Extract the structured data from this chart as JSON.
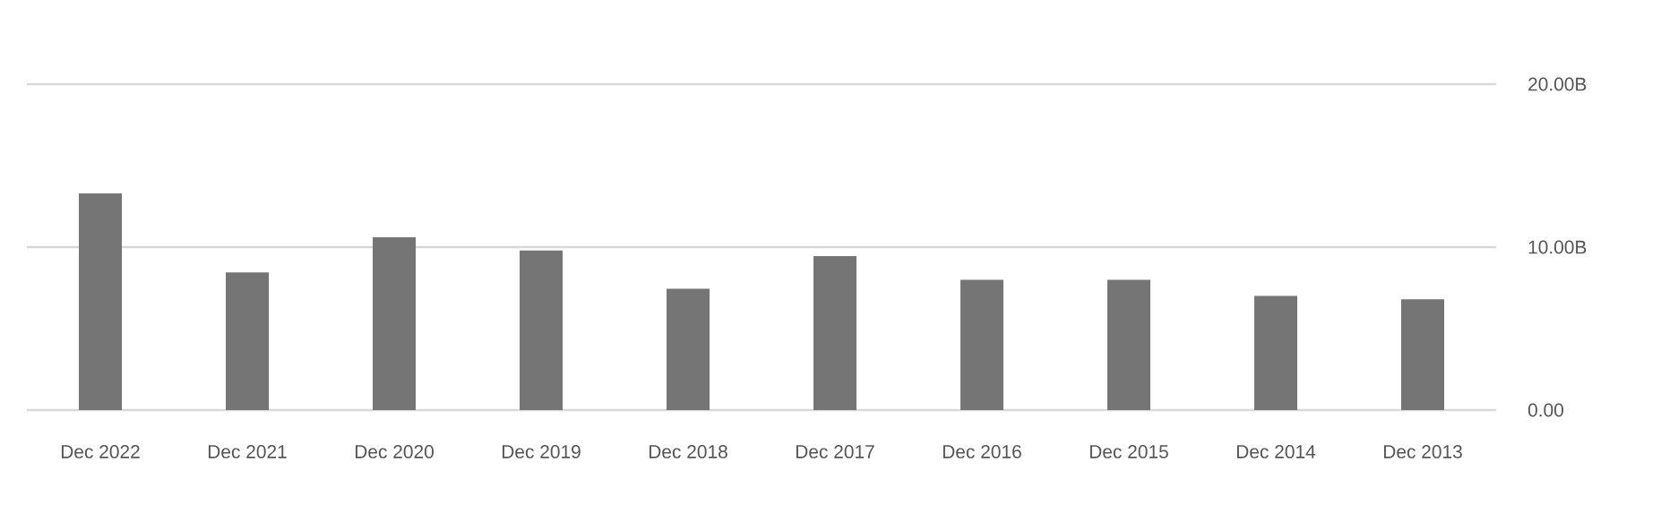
{
  "chart_data": {
    "type": "bar",
    "categories": [
      "Dec 2022",
      "Dec 2021",
      "Dec 2020",
      "Dec 2019",
      "Dec 2018",
      "Dec 2017",
      "Dec 2016",
      "Dec 2015",
      "Dec 2014",
      "Dec 2013"
    ],
    "values": [
      13.3,
      8.45,
      10.6,
      9.8,
      7.45,
      9.45,
      8.0,
      8.0,
      7.0,
      6.8
    ],
    "color": "#757575",
    "ylim": [
      0,
      20
    ],
    "yticks": [
      {
        "value": 0,
        "label": "0.00"
      },
      {
        "value": 10,
        "label": "10.00B"
      },
      {
        "value": 20,
        "label": "20.00B"
      }
    ],
    "grid": "y"
  }
}
